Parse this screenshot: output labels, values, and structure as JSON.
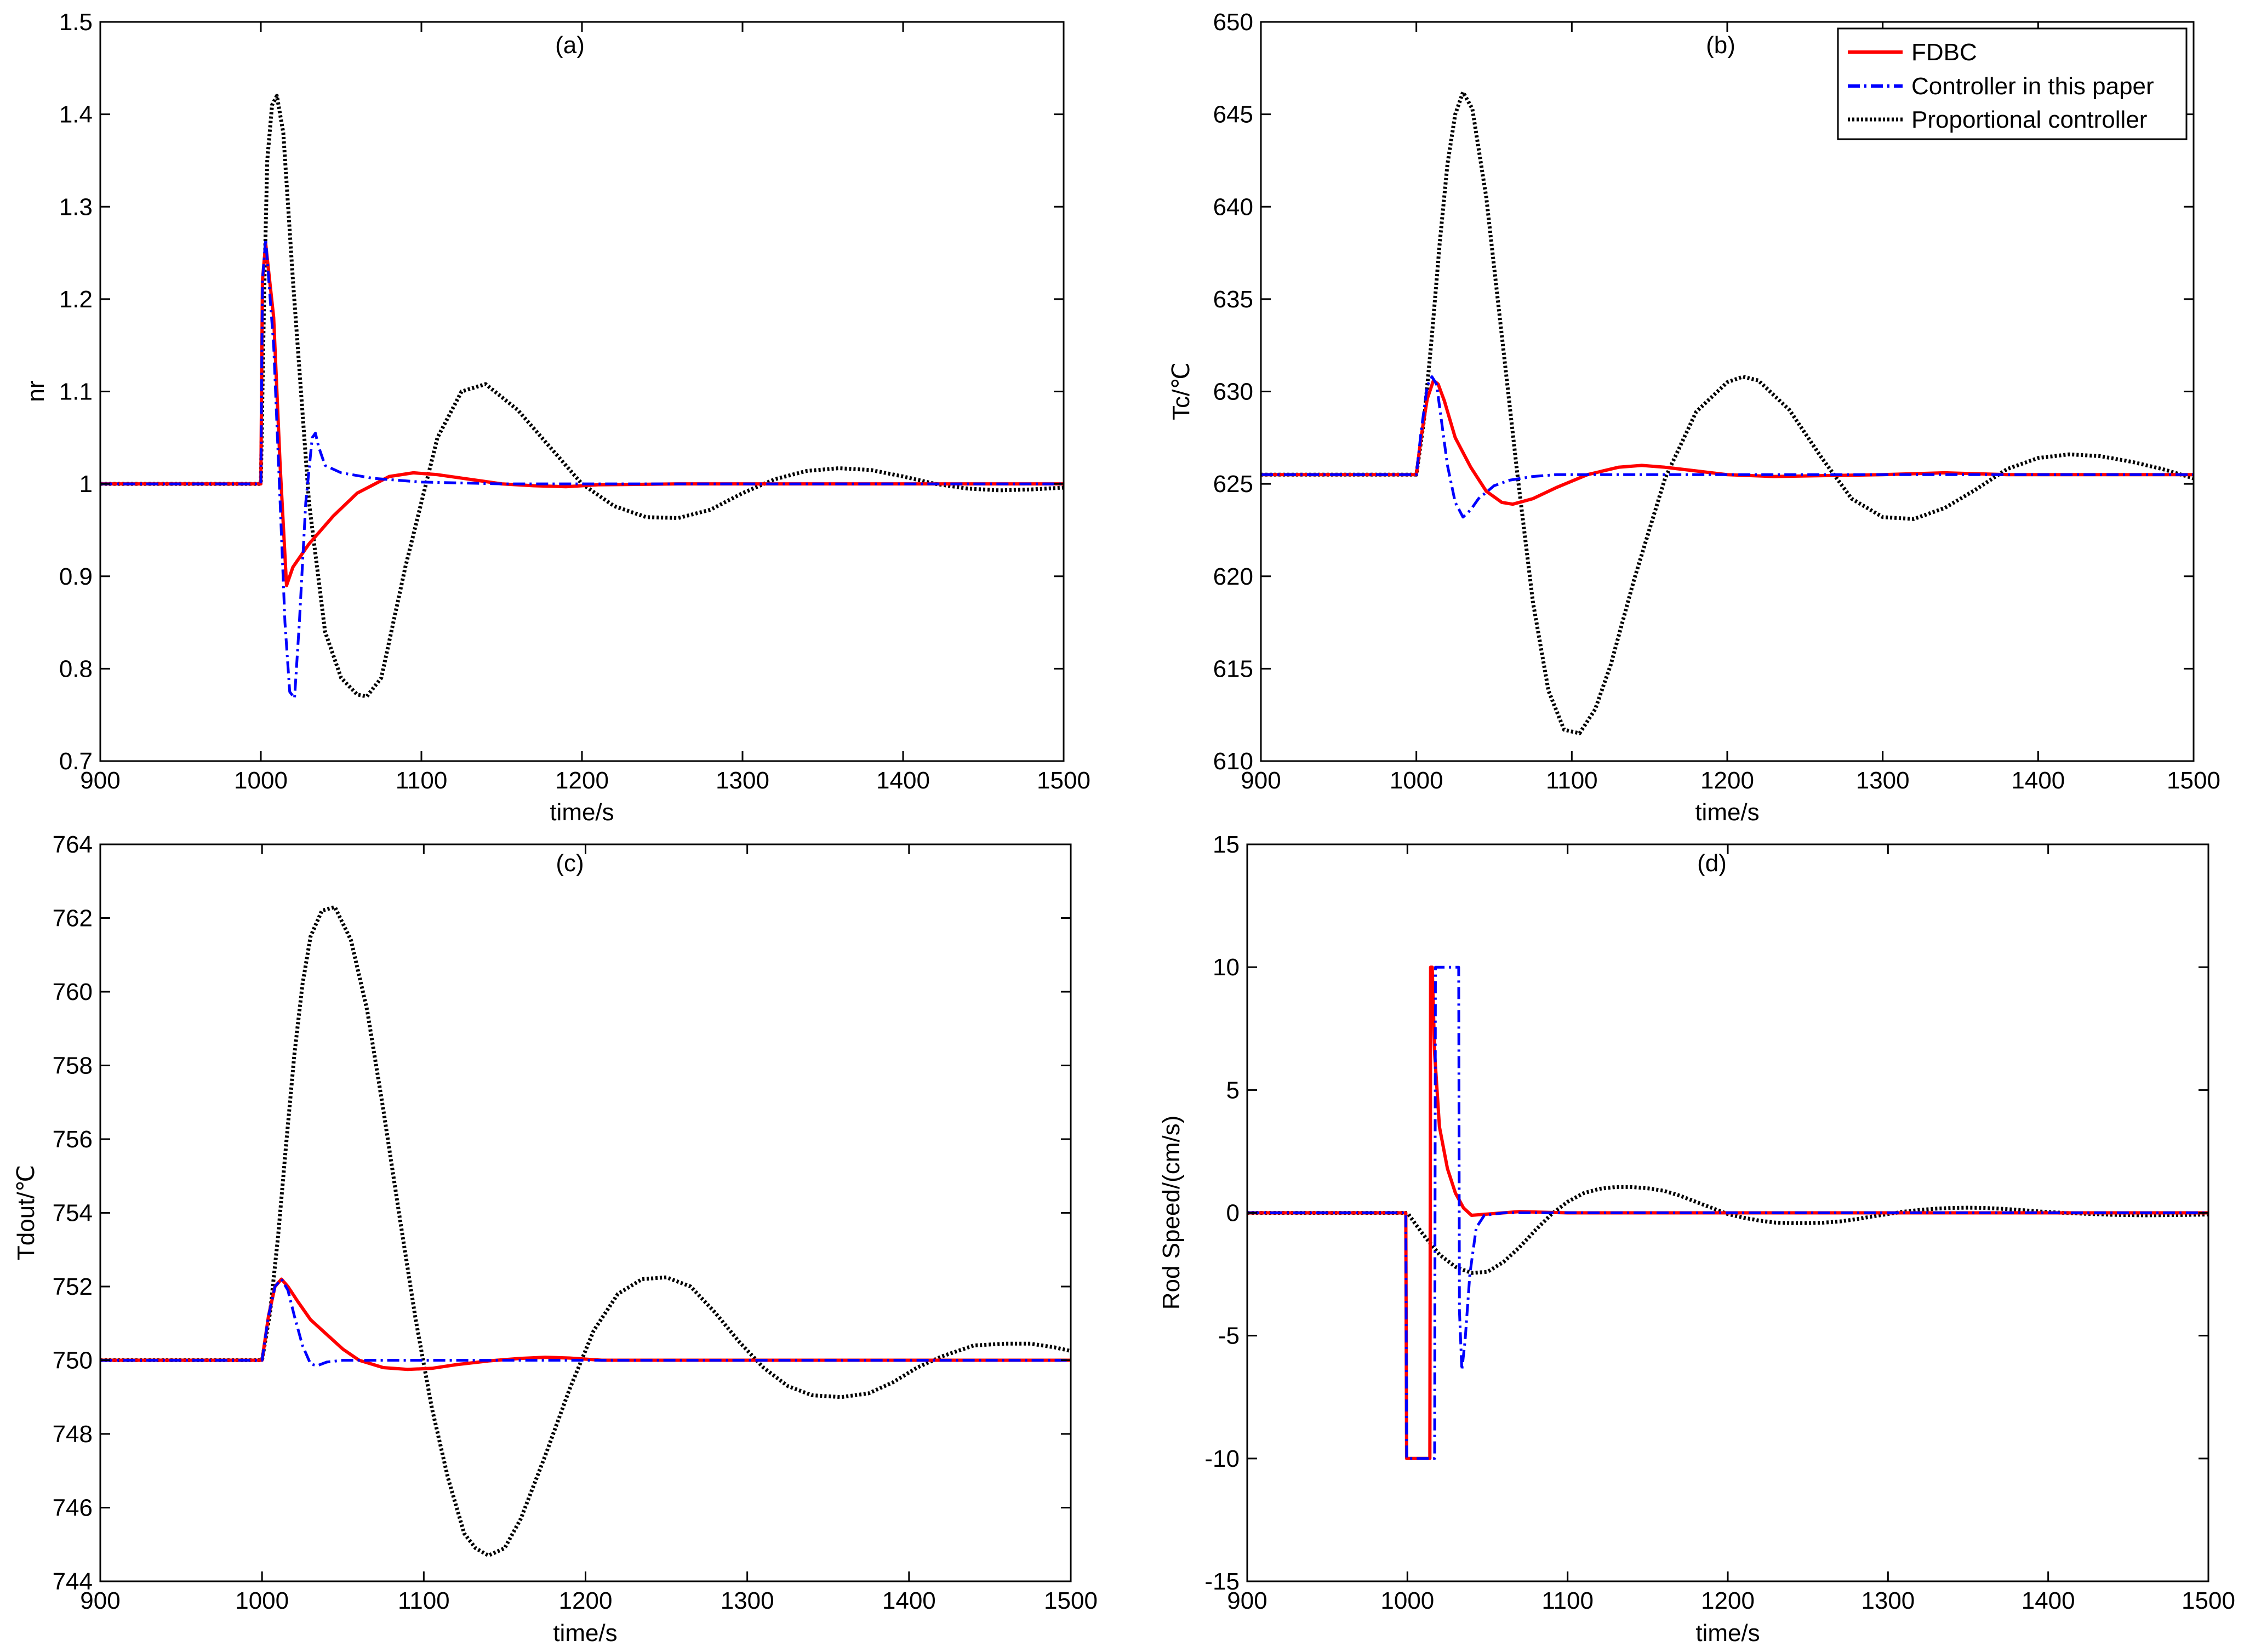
{
  "series_styles": [
    {
      "key": "fdbc",
      "name": "FDBC",
      "color": "#ff0000",
      "dash": "solid"
    },
    {
      "key": "ctrl",
      "name": "Controller in this paper",
      "color": "#0000ff",
      "dash": "dashdot"
    },
    {
      "key": "prop",
      "name": "Proportional controller",
      "color": "#000000",
      "dash": "dotted"
    }
  ],
  "chart_data": [
    {
      "id": "a",
      "type": "line",
      "title": "(a)",
      "xlabel": "time/s",
      "ylabel": "nr",
      "xlim": [
        900,
        1500
      ],
      "ylim": [
        0.7,
        1.5
      ],
      "xticks": [
        900,
        1000,
        1100,
        1200,
        1300,
        1400,
        1500
      ],
      "yticks": [
        0.7,
        0.8,
        0.9,
        1.0,
        1.1,
        1.2,
        1.3,
        1.4,
        1.5
      ],
      "ytick_labels": [
        "0.7",
        "0.8",
        "0.9",
        "1",
        "1.1",
        "1.2",
        "1.3",
        "1.4",
        "1.5"
      ],
      "series": [
        {
          "key": "fdbc",
          "name": "FDBC",
          "x": [
            900,
            1000,
            1001,
            1003,
            1008,
            1012,
            1016,
            1020,
            1030,
            1045,
            1060,
            1080,
            1095,
            1110,
            1130,
            1150,
            1170,
            1190,
            1210,
            1260,
            1320,
            1400,
            1500
          ],
          "y": [
            1.0,
            1.0,
            1.22,
            1.26,
            1.18,
            1.02,
            0.89,
            0.91,
            0.935,
            0.965,
            0.99,
            1.008,
            1.012,
            1.01,
            1.005,
            1.0,
            0.998,
            0.997,
            0.999,
            1.0,
            1.0,
            1.0,
            1.0
          ]
        },
        {
          "key": "ctrl",
          "name": "Controller in this paper",
          "x": [
            900,
            1000,
            1001,
            1003,
            1008,
            1012,
            1015,
            1018,
            1021,
            1024,
            1028,
            1032,
            1034,
            1036,
            1040,
            1050,
            1070,
            1100,
            1150,
            1200,
            1300,
            1500
          ],
          "y": [
            1.0,
            1.0,
            1.22,
            1.265,
            1.15,
            0.98,
            0.85,
            0.775,
            0.768,
            0.85,
            0.98,
            1.05,
            1.055,
            1.04,
            1.02,
            1.012,
            1.006,
            1.002,
            1.0,
            1.0,
            1.0,
            1.0
          ]
        },
        {
          "key": "prop",
          "name": "Proportional controller",
          "x": [
            900,
            1000,
            1002,
            1004,
            1007,
            1010,
            1014,
            1020,
            1030,
            1040,
            1050,
            1060,
            1066,
            1075,
            1090,
            1110,
            1125,
            1140,
            1160,
            1180,
            1200,
            1220,
            1240,
            1260,
            1280,
            1300,
            1320,
            1340,
            1360,
            1380,
            1400,
            1420,
            1440,
            1460,
            1480,
            1500
          ],
          "y": [
            1.0,
            1.0,
            1.2,
            1.35,
            1.41,
            1.42,
            1.38,
            1.22,
            0.98,
            0.84,
            0.79,
            0.772,
            0.77,
            0.79,
            0.91,
            1.05,
            1.1,
            1.108,
            1.08,
            1.04,
            1.0,
            0.976,
            0.964,
            0.963,
            0.972,
            0.99,
            1.005,
            1.014,
            1.017,
            1.015,
            1.008,
            1.0,
            0.995,
            0.993,
            0.994,
            0.996
          ]
        }
      ]
    },
    {
      "id": "b",
      "type": "line",
      "title": "(b)",
      "xlabel": "time/s",
      "ylabel": "Tc/℃",
      "xlim": [
        900,
        1500
      ],
      "ylim": [
        610,
        650
      ],
      "xticks": [
        900,
        1000,
        1100,
        1200,
        1300,
        1400,
        1500
      ],
      "yticks": [
        610,
        615,
        620,
        625,
        630,
        635,
        640,
        645,
        650
      ],
      "ytick_labels": [
        "610",
        "615",
        "620",
        "625",
        "630",
        "635",
        "640",
        "645",
        "650"
      ],
      "legend": "top-right",
      "series": [
        {
          "key": "fdbc",
          "name": "FDBC",
          "x": [
            900,
            1000,
            1003,
            1007,
            1011,
            1014,
            1018,
            1025,
            1035,
            1045,
            1055,
            1062,
            1075,
            1090,
            1110,
            1130,
            1145,
            1160,
            1180,
            1200,
            1230,
            1300,
            1340,
            1380,
            1500
          ],
          "y": [
            625.5,
            625.5,
            627.5,
            629.6,
            630.6,
            630.4,
            629.5,
            627.5,
            625.9,
            624.6,
            624.0,
            623.9,
            624.2,
            624.8,
            625.5,
            625.9,
            626.0,
            625.9,
            625.7,
            625.5,
            625.4,
            625.5,
            625.6,
            625.5,
            625.5
          ]
        },
        {
          "key": "ctrl",
          "name": "Controller in this paper",
          "x": [
            900,
            1000,
            1003,
            1007,
            1010,
            1013,
            1016,
            1020,
            1025,
            1030,
            1035,
            1040,
            1050,
            1060,
            1075,
            1090,
            1200,
            1500
          ],
          "y": [
            625.5,
            625.5,
            627.8,
            630.3,
            630.8,
            630.4,
            628.5,
            626.0,
            624.0,
            623.2,
            623.6,
            624.2,
            624.9,
            625.2,
            625.4,
            625.5,
            625.5,
            625.5
          ]
        },
        {
          "key": "prop",
          "name": "Proportional controller",
          "x": [
            900,
            1000,
            1005,
            1010,
            1015,
            1020,
            1025,
            1030,
            1036,
            1045,
            1055,
            1065,
            1075,
            1085,
            1095,
            1105,
            1115,
            1125,
            1140,
            1160,
            1180,
            1200,
            1210,
            1220,
            1240,
            1260,
            1280,
            1300,
            1320,
            1340,
            1360,
            1380,
            1400,
            1420,
            1440,
            1460,
            1480,
            1500
          ],
          "y": [
            625.5,
            625.5,
            628.5,
            633.0,
            638.0,
            642.3,
            645.0,
            646.2,
            645.3,
            640.5,
            633.0,
            625.5,
            618.6,
            613.8,
            611.7,
            611.5,
            612.8,
            615.2,
            619.8,
            625.3,
            628.9,
            630.5,
            630.8,
            630.6,
            629.0,
            626.5,
            624.2,
            623.2,
            623.1,
            623.7,
            624.7,
            625.8,
            626.4,
            626.6,
            626.5,
            626.2,
            625.8,
            625.3
          ]
        }
      ]
    },
    {
      "id": "c",
      "type": "line",
      "title": "(c)",
      "xlabel": "time/s",
      "ylabel": "Tdout/℃",
      "xlim": [
        900,
        1500
      ],
      "ylim": [
        744,
        764
      ],
      "xticks": [
        900,
        1000,
        1100,
        1200,
        1300,
        1400,
        1500
      ],
      "yticks": [
        744,
        746,
        748,
        750,
        752,
        754,
        756,
        758,
        760,
        762,
        764
      ],
      "ytick_labels": [
        "744",
        "746",
        "748",
        "750",
        "752",
        "754",
        "756",
        "758",
        "760",
        "762",
        "764"
      ],
      "series": [
        {
          "key": "fdbc",
          "name": "FDBC",
          "x": [
            900,
            1000,
            1004,
            1008,
            1012,
            1016,
            1022,
            1030,
            1040,
            1050,
            1060,
            1075,
            1090,
            1105,
            1120,
            1140,
            1160,
            1175,
            1190,
            1210,
            1250,
            1500
          ],
          "y": [
            750.0,
            750.0,
            751.2,
            752.0,
            752.2,
            752.0,
            751.6,
            751.1,
            750.7,
            750.3,
            750.0,
            749.8,
            749.75,
            749.78,
            749.88,
            749.98,
            750.05,
            750.08,
            750.06,
            750.0,
            750.0,
            750.0
          ]
        },
        {
          "key": "ctrl",
          "name": "Controller in this paper",
          "x": [
            900,
            1000,
            1004,
            1008,
            1012,
            1016,
            1020,
            1025,
            1030,
            1034,
            1040,
            1050,
            1100,
            1500
          ],
          "y": [
            750.0,
            750.0,
            751.2,
            752.0,
            752.2,
            751.9,
            751.2,
            750.4,
            749.9,
            749.85,
            749.95,
            750.0,
            750.0,
            750.0
          ]
        },
        {
          "key": "prop",
          "name": "Proportional controller",
          "x": [
            900,
            1000,
            1005,
            1010,
            1015,
            1020,
            1025,
            1030,
            1037,
            1045,
            1055,
            1065,
            1075,
            1085,
            1095,
            1105,
            1115,
            1125,
            1132,
            1140,
            1150,
            1160,
            1175,
            1190,
            1205,
            1220,
            1235,
            1250,
            1265,
            1280,
            1295,
            1310,
            1325,
            1340,
            1358,
            1375,
            1390,
            1405,
            1420,
            1440,
            1460,
            1475,
            1490,
            1500
          ],
          "y": [
            750.0,
            750.0,
            751.3,
            753.4,
            755.9,
            758.3,
            760.2,
            761.5,
            762.2,
            762.3,
            761.4,
            759.5,
            756.8,
            753.9,
            751.1,
            748.7,
            746.8,
            745.3,
            744.9,
            744.7,
            744.9,
            745.7,
            747.4,
            749.2,
            750.8,
            751.8,
            752.2,
            752.25,
            752.0,
            751.3,
            750.5,
            749.8,
            749.3,
            749.05,
            749.0,
            749.1,
            749.4,
            749.8,
            750.1,
            750.4,
            750.45,
            750.45,
            750.35,
            750.25
          ]
        }
      ]
    },
    {
      "id": "d",
      "type": "line",
      "title": "(d)",
      "xlabel": "time/s",
      "ylabel": "Rod Speed/(cm/s)",
      "xlim": [
        900,
        1500
      ],
      "ylim": [
        -15,
        15
      ],
      "xticks": [
        900,
        1000,
        1100,
        1200,
        1300,
        1400,
        1500
      ],
      "yticks": [
        -15,
        -10,
        -5,
        0,
        5,
        10,
        15
      ],
      "ytick_labels": [
        "-15",
        "-10",
        "-5",
        "0",
        "5",
        "10",
        "15"
      ],
      "series": [
        {
          "key": "fdbc",
          "name": "FDBC",
          "x": [
            900,
            999,
            999.5,
            1014,
            1014.5,
            1015.5,
            1017,
            1020,
            1025,
            1030,
            1035,
            1040,
            1050,
            1070,
            1100,
            1150,
            1500
          ],
          "y": [
            0,
            0,
            -10,
            -10,
            10,
            10,
            6.5,
            3.5,
            1.8,
            0.8,
            0.2,
            -0.1,
            -0.05,
            0.05,
            0.0,
            0.0,
            0.0
          ]
        },
        {
          "key": "ctrl",
          "name": "Controller in this paper",
          "x": [
            900,
            999,
            999.5,
            1017,
            1017.5,
            1032,
            1032.5,
            1034,
            1036,
            1039,
            1043,
            1048,
            1060,
            1100,
            1500
          ],
          "y": [
            0,
            0,
            -10,
            -10,
            10,
            10,
            -4,
            -6.4,
            -5.2,
            -2.5,
            -0.6,
            -0.1,
            0.0,
            0.0,
            0.0
          ]
        },
        {
          "key": "prop",
          "name": "Proportional controller",
          "x": [
            900,
            1000,
            1010,
            1020,
            1030,
            1040,
            1050,
            1060,
            1070,
            1080,
            1090,
            1100,
            1110,
            1120,
            1130,
            1140,
            1150,
            1160,
            1170,
            1180,
            1190,
            1200,
            1210,
            1220,
            1230,
            1240,
            1250,
            1260,
            1270,
            1280,
            1290,
            1300,
            1310,
            1320,
            1330,
            1340,
            1350,
            1360,
            1370,
            1380,
            1390,
            1400,
            1420,
            1440,
            1460,
            1480,
            1500
          ],
          "y": [
            0.0,
            0.0,
            -0.9,
            -1.7,
            -2.2,
            -2.45,
            -2.4,
            -2.0,
            -1.4,
            -0.7,
            -0.05,
            0.45,
            0.8,
            0.98,
            1.05,
            1.05,
            1.0,
            0.9,
            0.7,
            0.45,
            0.2,
            -0.05,
            -0.2,
            -0.32,
            -0.4,
            -0.42,
            -0.42,
            -0.4,
            -0.35,
            -0.26,
            -0.15,
            -0.05,
            0.05,
            0.12,
            0.17,
            0.2,
            0.21,
            0.2,
            0.17,
            0.13,
            0.08,
            0.03,
            -0.03,
            -0.08,
            -0.1,
            -0.09,
            -0.07
          ]
        }
      ]
    }
  ]
}
